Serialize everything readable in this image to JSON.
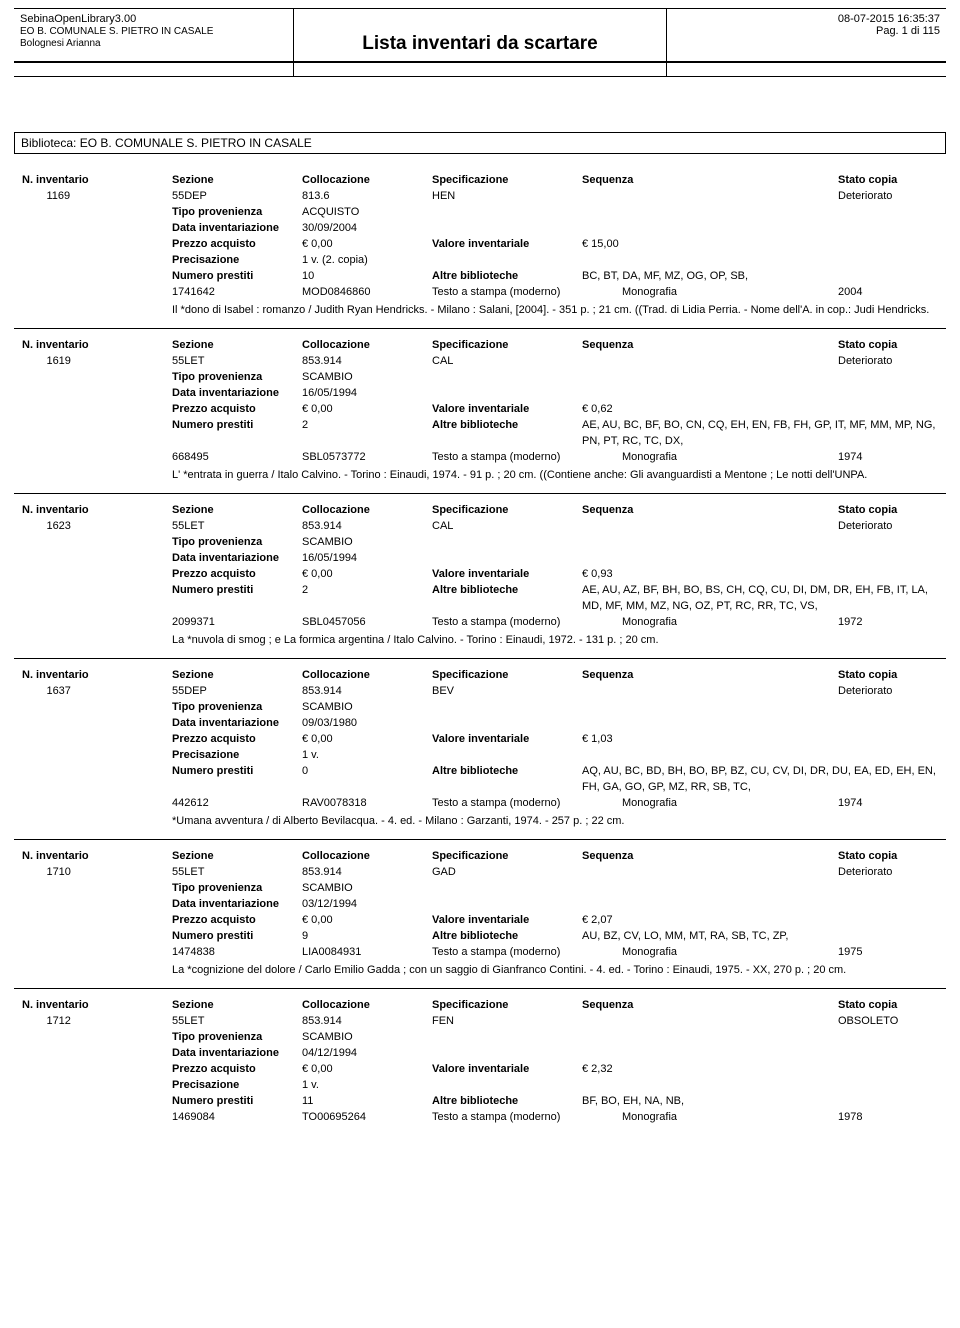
{
  "header": {
    "app_name": "SebinaOpenLibrary3.00",
    "library": "EO B. COMUNALE S. PIETRO IN CASALE",
    "user": "Bolognesi Arianna",
    "title": "Lista inventari da scartare",
    "timestamp": "08-07-2015 16:35:37",
    "page": "Pag. 1 di  115"
  },
  "biblioteca_line": "Biblioteca: EO B. COMUNALE S. PIETRO IN CASALE",
  "labels": {
    "n_inventario": "N. inventario",
    "sezione": "Sezione",
    "collocazione": "Collocazione",
    "specificazione": "Specificazione",
    "sequenza": "Sequenza",
    "stato_copia": "Stato copia",
    "tipo_provenienza": "Tipo provenienza",
    "data_inventariazione": "Data inventariazione",
    "prezzo_acquisto": "Prezzo acquisto",
    "valore_inventariale": "Valore inventariale",
    "precisazione": "Precisazione",
    "numero_prestiti": "Numero prestiti",
    "altre_biblioteche": "Altre biblioteche"
  },
  "records": [
    {
      "n_inv": "1169",
      "sezione": "55DEP",
      "colloc": "813.6",
      "spec": "HEN",
      "stato": "Deteriorato",
      "tipo_prov": "ACQUISTO",
      "data_inv": "30/09/2004",
      "prezzo": "€ 0,00",
      "valore": "€ 15,00",
      "precis": "1 v. (2. copia)",
      "prestiti": "10",
      "altre_bib": "BC, BT, DA, MF, MZ, OG, OP, SB,",
      "code1": "1741642",
      "code2": "MOD0846860",
      "doc_type": "Testo a stampa (moderno)",
      "kind": "Monografia",
      "year": "2004",
      "desc": "Il *dono di Isabel : romanzo / Judith Ryan Hendricks. - Milano : Salani, [2004]. - 351 p. ; 21 cm. ((Trad. di Lidia Perria. - Nome dell'A. in cop.: Judi Hendricks."
    },
    {
      "n_inv": "1619",
      "sezione": "55LET",
      "colloc": "853.914",
      "spec": "CAL",
      "stato": "Deteriorato",
      "tipo_prov": "SCAMBIO",
      "data_inv": "16/05/1994",
      "prezzo": "€ 0,00",
      "valore": "€ 0,62",
      "precis": "",
      "prestiti": "2",
      "altre_bib": "AE, AU, BC, BF, BO, CN, CQ, EH, EN, FB, FH, GP, IT, MF, MM, MP, NG, PN, PT, RC, TC, DX,",
      "code1": "668495",
      "code2": "SBL0573772",
      "doc_type": "Testo a stampa (moderno)",
      "kind": "Monografia",
      "year": "1974",
      "desc": "L' *entrata in guerra /  Italo Calvino. - Torino : Einaudi, 1974. - 91 p. ; 20 cm. ((Contiene anche: Gli avanguardisti a Mentone ; Le notti dell'UNPA."
    },
    {
      "n_inv": "1623",
      "sezione": "55LET",
      "colloc": "853.914",
      "spec": "CAL",
      "stato": "Deteriorato",
      "tipo_prov": "SCAMBIO",
      "data_inv": "16/05/1994",
      "prezzo": "€ 0,00",
      "valore": "€ 0,93",
      "precis": "",
      "prestiti": "2",
      "altre_bib": "AE, AU, AZ, BF, BH, BO, BS, CH, CQ, CU, DI, DM, DR, EH, FB, IT, LA, MD, MF, MM, MZ, NG, OZ, PT, RC, RR, TC, VS,",
      "code1": "2099371",
      "code2": "SBL0457056",
      "doc_type": "Testo a stampa (moderno)",
      "kind": "Monografia",
      "year": "1972",
      "desc": "La *nuvola di smog ; e La formica argentina / Italo Calvino. - Torino : Einaudi, 1972. - 131 p. ; 20 cm."
    },
    {
      "n_inv": "1637",
      "sezione": "55DEP",
      "colloc": "853.914",
      "spec": "BEV",
      "stato": "Deteriorato",
      "tipo_prov": "SCAMBIO",
      "data_inv": "09/03/1980",
      "prezzo": "€ 0,00",
      "valore": "€ 1,03",
      "precis": "1 v.",
      "prestiti": "0",
      "altre_bib": "AQ, AU, BC, BD, BH, BO, BP, BZ, CU, CV, DI, DR, DU, EA, ED, EH, EN, FH, GA, GO, GP, MZ, RR, SB, TC,",
      "code1": "442612",
      "code2": "RAV0078318",
      "doc_type": "Testo a stampa (moderno)",
      "kind": "Monografia",
      "year": "1974",
      "desc": "*Umana avventura / di Alberto Bevilacqua. - 4. ed. - Milano : Garzanti, 1974. - 257 p. ; 22 cm."
    },
    {
      "n_inv": "1710",
      "sezione": "55LET",
      "colloc": "853.914",
      "spec": "GAD",
      "stato": "Deteriorato",
      "tipo_prov": "SCAMBIO",
      "data_inv": "03/12/1994",
      "prezzo": "€ 0,00",
      "valore": "€ 2,07",
      "precis": "",
      "prestiti": "9",
      "altre_bib": "AU, BZ, CV, LO, MM, MT, RA, SB, TC, ZP,",
      "code1": "1474838",
      "code2": "LIA0084931",
      "doc_type": "Testo a stampa (moderno)",
      "kind": "Monografia",
      "year": "1975",
      "desc": "La *cognizione del dolore / Carlo Emilio Gadda ; con un saggio di Gianfranco Contini. - 4. ed. - Torino : Einaudi, 1975. - XX, 270 p. ; 20 cm."
    },
    {
      "n_inv": "1712",
      "sezione": "55LET",
      "colloc": "853.914",
      "spec": "FEN",
      "stato": "OBSOLETO",
      "tipo_prov": "SCAMBIO",
      "data_inv": "04/12/1994",
      "prezzo": "€ 0,00",
      "valore": "€ 2,32",
      "precis": "1 v.",
      "prestiti": "11",
      "altre_bib": "BF, BO, EH, NA, NB,",
      "code1": "1469084",
      "code2": "TO00695264",
      "doc_type": "Testo a stampa (moderno)",
      "kind": "Monografia",
      "year": "1978",
      "desc": ""
    }
  ]
}
